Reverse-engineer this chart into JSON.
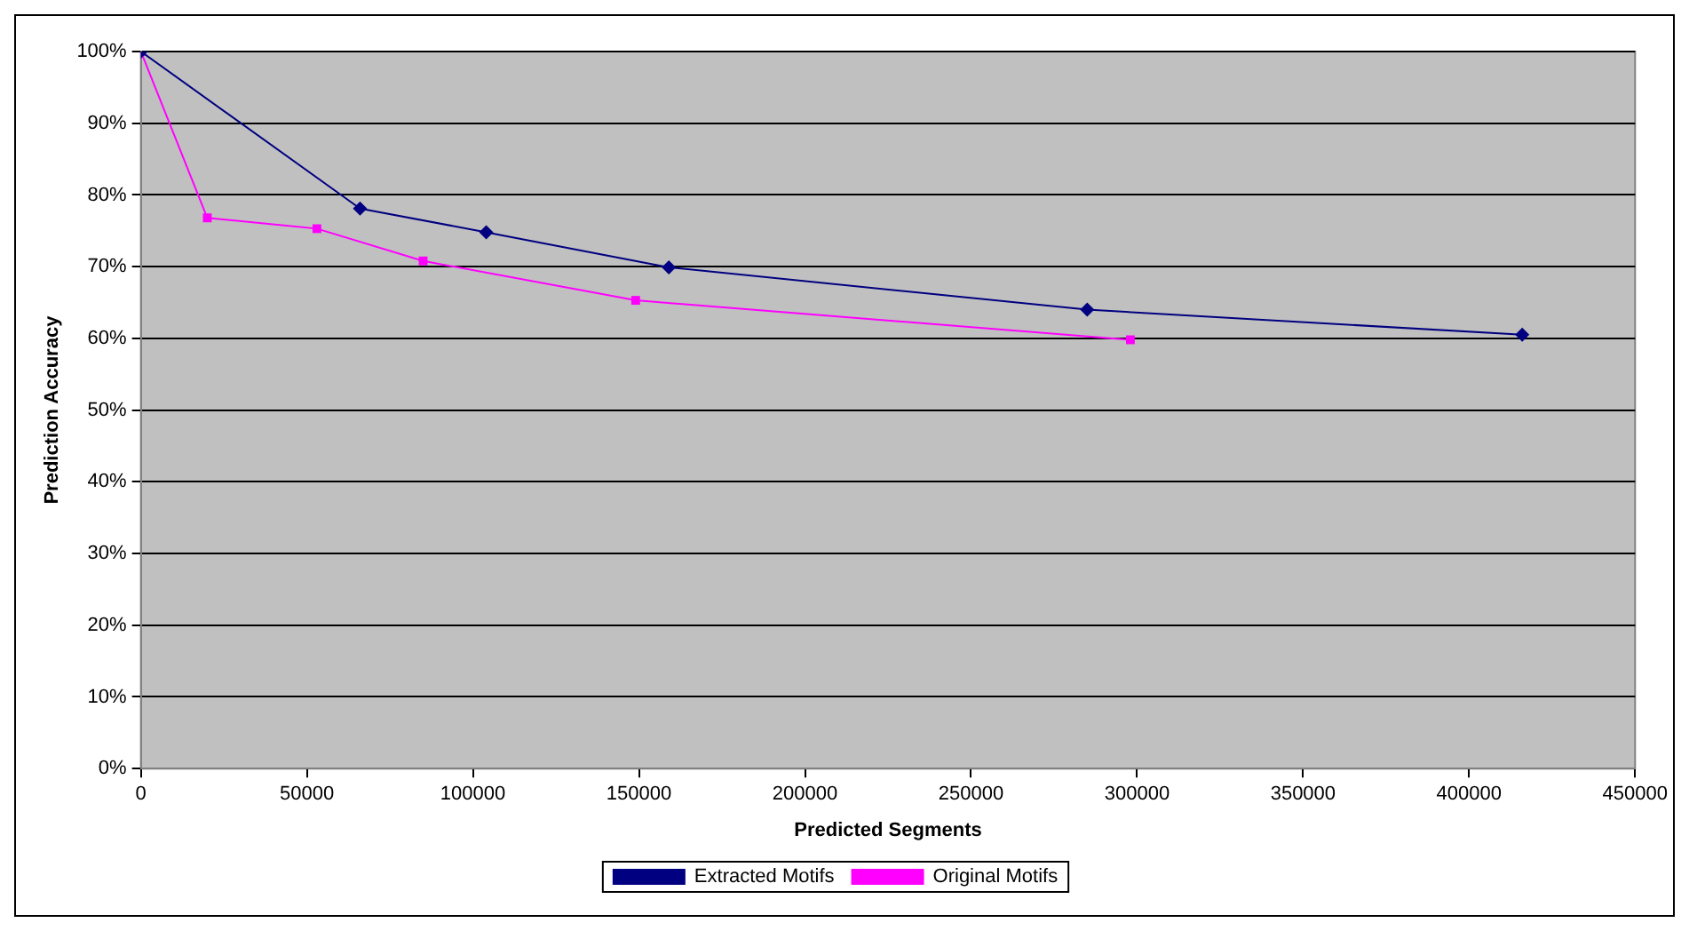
{
  "chart_data": {
    "type": "line",
    "xlabel": "Predicted Segments",
    "ylabel": "Prediction Accuracy",
    "xlim": [
      0,
      450000
    ],
    "xticks": [
      0,
      50000,
      100000,
      150000,
      200000,
      250000,
      300000,
      350000,
      400000,
      450000
    ],
    "ylim": [
      0,
      100
    ],
    "yticks": [
      {
        "value": 0,
        "label": "0%"
      },
      {
        "value": 10,
        "label": "10%"
      },
      {
        "value": 20,
        "label": "20%"
      },
      {
        "value": 30,
        "label": "30%"
      },
      {
        "value": 40,
        "label": "40%"
      },
      {
        "value": 50,
        "label": "50%"
      },
      {
        "value": 60,
        "label": "60%"
      },
      {
        "value": 70,
        "label": "70%"
      },
      {
        "value": 80,
        "label": "80%"
      },
      {
        "value": 90,
        "label": "90%"
      },
      {
        "value": 100,
        "label": "100%"
      }
    ],
    "grid": "y",
    "legend": "bottom",
    "line_style": "solid",
    "series": [
      {
        "name": "Extracted Motifs",
        "color": "#000080",
        "marker": "diamond",
        "x": [
          0,
          66000,
          104000,
          159000,
          285000,
          416000
        ],
        "values": [
          100,
          78.1,
          74.8,
          69.9,
          64.0,
          60.5
        ]
      },
      {
        "name": "Original Motifs",
        "color": "#ff00ff",
        "marker": "square",
        "x": [
          0,
          20000,
          53000,
          85000,
          149000,
          298000
        ],
        "values": [
          100,
          76.8,
          75.3,
          70.8,
          65.3,
          59.8
        ]
      }
    ]
  }
}
